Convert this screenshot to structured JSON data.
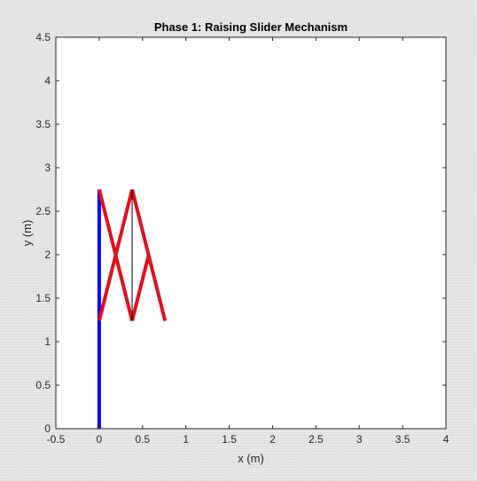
{
  "chart_data": {
    "type": "line",
    "title": "Phase 1: Raising Slider Mechanism",
    "xlabel": "x (m)",
    "ylabel": "y (m)",
    "xlim": [
      -0.5,
      4
    ],
    "ylim": [
      0,
      4.5
    ],
    "xticks": [
      -0.5,
      0,
      0.5,
      1,
      1.5,
      2,
      2.5,
      3,
      3.5,
      4
    ],
    "yticks": [
      0,
      0.5,
      1,
      1.5,
      2,
      2.5,
      3,
      3.5,
      4,
      4.5
    ],
    "xtick_labels": [
      "-0.5",
      "0",
      "0.5",
      "1",
      "1.5",
      "2",
      "2.5",
      "3",
      "3.5",
      "4"
    ],
    "ytick_labels": [
      "0",
      "0.5",
      "1",
      "1.5",
      "2",
      "2.5",
      "3",
      "3.5",
      "4",
      "4.5"
    ],
    "grid": false,
    "colors": {
      "rail": "#0000ff",
      "links": "#e0101e",
      "tie": "#000000",
      "axes_background": "#ffffff",
      "axis_line": "#262626"
    },
    "series": [
      {
        "x": [
          0,
          0
        ],
        "y": [
          0,
          2.75
        ],
        "color": "#0000ff",
        "width": 4
      },
      {
        "x": [
          0,
          0.38
        ],
        "y": [
          2.75,
          1.24
        ],
        "color": "#e0101e",
        "width": 4
      },
      {
        "x": [
          0,
          0.38
        ],
        "y": [
          1.24,
          2.75
        ],
        "color": "#e0101e",
        "width": 4
      },
      {
        "x": [
          0.38,
          0.76
        ],
        "y": [
          2.75,
          1.24
        ],
        "color": "#e0101e",
        "width": 4
      },
      {
        "x": [
          0.38,
          0.57
        ],
        "y": [
          1.24,
          1.995
        ],
        "color": "#e0101e",
        "width": 4
      },
      {
        "x": [
          0.38,
          0.38
        ],
        "y": [
          1.24,
          2.75
        ],
        "color": "#000000",
        "width": 1
      }
    ]
  }
}
